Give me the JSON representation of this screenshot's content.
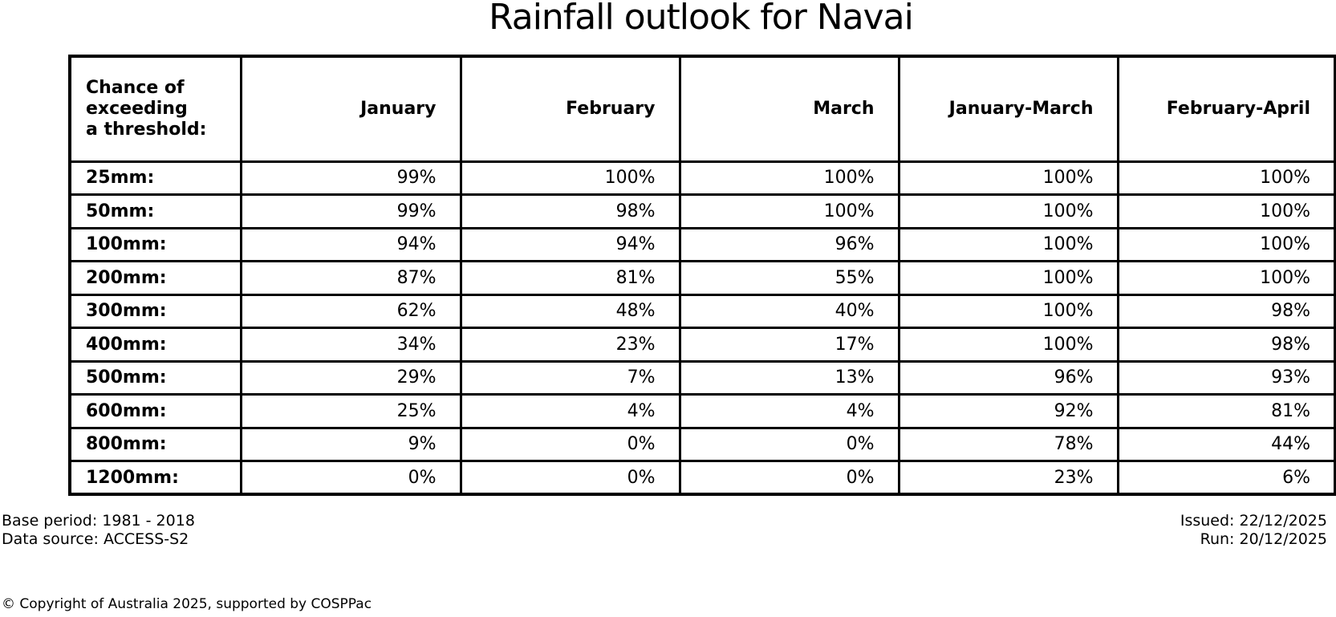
{
  "title": "Rainfall outlook for Navai",
  "table": {
    "corner_header": "Chance of\nexceeding\na threshold:",
    "columns": [
      "January",
      "February",
      "March",
      "January-March",
      "February-April"
    ],
    "rows": [
      {
        "label": "25mm:",
        "values": [
          "99%",
          "100%",
          "100%",
          "100%",
          "100%"
        ]
      },
      {
        "label": "50mm:",
        "values": [
          "99%",
          "98%",
          "100%",
          "100%",
          "100%"
        ]
      },
      {
        "label": "100mm:",
        "values": [
          "94%",
          "94%",
          "96%",
          "100%",
          "100%"
        ]
      },
      {
        "label": "200mm:",
        "values": [
          "87%",
          "81%",
          "55%",
          "100%",
          "100%"
        ]
      },
      {
        "label": "300mm:",
        "values": [
          "62%",
          "48%",
          "40%",
          "100%",
          "98%"
        ]
      },
      {
        "label": "400mm:",
        "values": [
          "34%",
          "23%",
          "17%",
          "100%",
          "98%"
        ]
      },
      {
        "label": "500mm:",
        "values": [
          "29%",
          "7%",
          "13%",
          "96%",
          "93%"
        ]
      },
      {
        "label": "600mm:",
        "values": [
          "25%",
          "4%",
          "4%",
          "92%",
          "81%"
        ]
      },
      {
        "label": "800mm:",
        "values": [
          "9%",
          "0%",
          "0%",
          "78%",
          "44%"
        ]
      },
      {
        "label": "1200mm:",
        "values": [
          "0%",
          "0%",
          "0%",
          "23%",
          "6%"
        ]
      }
    ]
  },
  "footer": {
    "base_period": "Base period: 1981 - 2018",
    "data_source": "Data source: ACCESS-S2",
    "issued": "Issued: 22/12/2025",
    "run": "Run: 20/12/2025",
    "copyright": "© Copyright of Australia 2025, supported by COSPPac"
  },
  "colors": {
    "text": "#000000",
    "background": "#ffffff",
    "border": "#000000"
  },
  "chart_data": {
    "type": "table",
    "title": "Rainfall outlook for Navai",
    "row_header": "Chance of exceeding a threshold:",
    "unit": "%",
    "categories": [
      "25mm",
      "50mm",
      "100mm",
      "200mm",
      "300mm",
      "400mm",
      "500mm",
      "600mm",
      "800mm",
      "1200mm"
    ],
    "series": [
      {
        "name": "January",
        "values": [
          99,
          99,
          94,
          87,
          62,
          34,
          29,
          25,
          9,
          0
        ]
      },
      {
        "name": "February",
        "values": [
          100,
          98,
          94,
          81,
          48,
          23,
          7,
          4,
          0,
          0
        ]
      },
      {
        "name": "March",
        "values": [
          100,
          100,
          96,
          55,
          40,
          17,
          13,
          4,
          0,
          0
        ]
      },
      {
        "name": "January-March",
        "values": [
          100,
          100,
          100,
          100,
          100,
          100,
          96,
          92,
          78,
          23
        ]
      },
      {
        "name": "February-April",
        "values": [
          100,
          100,
          100,
          100,
          98,
          98,
          93,
          81,
          44,
          6
        ]
      }
    ],
    "notes": [
      "Base period: 1981 - 2018",
      "Data source: ACCESS-S2",
      "Issued: 22/12/2025",
      "Run: 20/12/2025"
    ]
  }
}
